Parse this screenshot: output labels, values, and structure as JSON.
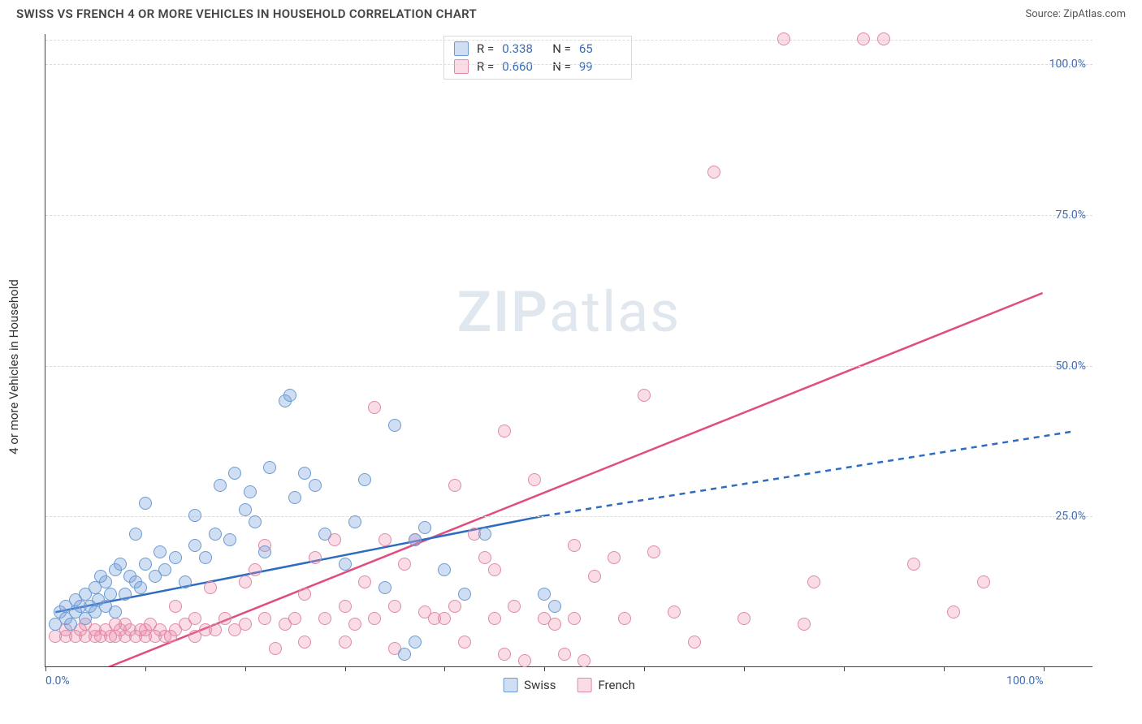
{
  "header": {
    "title": "SWISS VS FRENCH 4 OR MORE VEHICLES IN HOUSEHOLD CORRELATION CHART",
    "source_prefix": "Source: ",
    "source_link": "ZipAtlas.com"
  },
  "ylabel": "4 or more Vehicles in Household",
  "watermark": {
    "bold": "ZIP",
    "rest": "atlas"
  },
  "axes": {
    "xlim": [
      0,
      105
    ],
    "ylim": [
      0,
      105
    ],
    "yticks": [
      {
        "v": 25,
        "label": "25.0%"
      },
      {
        "v": 50,
        "label": "50.0%"
      },
      {
        "v": 75,
        "label": "75.0%"
      },
      {
        "v": 100,
        "label": "100.0%"
      }
    ],
    "grid_extra_y": 104,
    "xtick_positions": [
      0,
      10,
      20,
      30,
      40,
      50,
      60,
      70,
      80,
      90,
      100
    ],
    "xtick_labels": [
      {
        "v": 0,
        "label": "0.0%",
        "align": "left"
      },
      {
        "v": 100,
        "label": "100.0%",
        "align": "right"
      }
    ],
    "grid_color": "#dcdcdc"
  },
  "series": {
    "swiss": {
      "label": "Swiss",
      "fill": "rgba(120,160,220,0.35)",
      "stroke": "#6b9bd1",
      "line_color": "#2e6cc0",
      "r_label": "R =",
      "r_value": "0.338",
      "n_label": "N =",
      "n_value": "65",
      "marker_radius": 8,
      "trend": {
        "x1": 1,
        "y1": 9,
        "x2": 50,
        "y2": 25,
        "x_dash_to": 103,
        "y_dash_to": 39
      },
      "points": [
        [
          1,
          7
        ],
        [
          1.5,
          9
        ],
        [
          2,
          8
        ],
        [
          2,
          10
        ],
        [
          2.5,
          7
        ],
        [
          3,
          9
        ],
        [
          3,
          11
        ],
        [
          3.5,
          10
        ],
        [
          4,
          8
        ],
        [
          4,
          12
        ],
        [
          4.5,
          10
        ],
        [
          5,
          9
        ],
        [
          5,
          13
        ],
        [
          5.3,
          11
        ],
        [
          5.5,
          15
        ],
        [
          6,
          10
        ],
        [
          6,
          14
        ],
        [
          6.5,
          12
        ],
        [
          7,
          9
        ],
        [
          7,
          16
        ],
        [
          7.5,
          17
        ],
        [
          8,
          12
        ],
        [
          8.5,
          15
        ],
        [
          9,
          14
        ],
        [
          9,
          22
        ],
        [
          9.5,
          13
        ],
        [
          10,
          17
        ],
        [
          10,
          27
        ],
        [
          11,
          15
        ],
        [
          11.5,
          19
        ],
        [
          12,
          16
        ],
        [
          13,
          18
        ],
        [
          14,
          14
        ],
        [
          15,
          20
        ],
        [
          15,
          25
        ],
        [
          16,
          18
        ],
        [
          17,
          22
        ],
        [
          17.5,
          30
        ],
        [
          18.5,
          21
        ],
        [
          19,
          32
        ],
        [
          20,
          26
        ],
        [
          20.5,
          29
        ],
        [
          21,
          24
        ],
        [
          22,
          19
        ],
        [
          22.5,
          33
        ],
        [
          24,
          44
        ],
        [
          24.5,
          45
        ],
        [
          25,
          28
        ],
        [
          26,
          32
        ],
        [
          27,
          30
        ],
        [
          28,
          22
        ],
        [
          30,
          17
        ],
        [
          31,
          24
        ],
        [
          32,
          31
        ],
        [
          34,
          13
        ],
        [
          35,
          40
        ],
        [
          36,
          2
        ],
        [
          37,
          21
        ],
        [
          37,
          4
        ],
        [
          38,
          23
        ],
        [
          40,
          16
        ],
        [
          42,
          12
        ],
        [
          44,
          22
        ],
        [
          50,
          12
        ],
        [
          51,
          10
        ]
      ]
    },
    "french": {
      "label": "French",
      "fill": "rgba(235,140,170,0.30)",
      "stroke": "#e08aa8",
      "line_color": "#e04d7f",
      "r_label": "R =",
      "r_value": "0.660",
      "n_label": "N =",
      "n_value": "99",
      "marker_radius": 8,
      "trend": {
        "x1": 5,
        "y1": -1,
        "x2": 100,
        "y2": 62
      },
      "points": [
        [
          1,
          5
        ],
        [
          2,
          5
        ],
        [
          2,
          6
        ],
        [
          3,
          5
        ],
        [
          3.5,
          6
        ],
        [
          4,
          5
        ],
        [
          4,
          7
        ],
        [
          5,
          5
        ],
        [
          5,
          6
        ],
        [
          5.5,
          5
        ],
        [
          6,
          6
        ],
        [
          6.5,
          5
        ],
        [
          7,
          5
        ],
        [
          7,
          7
        ],
        [
          7.5,
          6
        ],
        [
          8,
          5
        ],
        [
          8,
          7
        ],
        [
          8.5,
          6
        ],
        [
          9,
          5
        ],
        [
          9.5,
          6
        ],
        [
          10,
          5
        ],
        [
          10,
          6
        ],
        [
          10.5,
          7
        ],
        [
          11,
          5
        ],
        [
          11.5,
          6
        ],
        [
          12,
          5
        ],
        [
          12.5,
          5
        ],
        [
          13,
          6
        ],
        [
          13,
          10
        ],
        [
          14,
          7
        ],
        [
          15,
          5
        ],
        [
          15,
          8
        ],
        [
          16,
          6
        ],
        [
          16.5,
          13
        ],
        [
          17,
          6
        ],
        [
          18,
          8
        ],
        [
          19,
          6
        ],
        [
          20,
          7
        ],
        [
          20,
          14
        ],
        [
          21,
          16
        ],
        [
          22,
          8
        ],
        [
          22,
          20
        ],
        [
          23,
          3
        ],
        [
          24,
          7
        ],
        [
          25,
          8
        ],
        [
          26,
          12
        ],
        [
          26,
          4
        ],
        [
          27,
          18
        ],
        [
          28,
          8
        ],
        [
          29,
          21
        ],
        [
          30,
          10
        ],
        [
          30,
          4
        ],
        [
          31,
          7
        ],
        [
          32,
          14
        ],
        [
          33,
          43
        ],
        [
          33,
          8
        ],
        [
          34,
          21
        ],
        [
          35,
          3
        ],
        [
          35,
          10
        ],
        [
          36,
          17
        ],
        [
          37,
          21
        ],
        [
          38,
          9
        ],
        [
          39,
          8
        ],
        [
          40,
          8
        ],
        [
          41,
          10
        ],
        [
          41,
          30
        ],
        [
          42,
          4
        ],
        [
          43,
          22
        ],
        [
          44,
          18
        ],
        [
          45,
          8
        ],
        [
          45,
          16
        ],
        [
          46,
          39
        ],
        [
          46,
          2
        ],
        [
          47,
          10
        ],
        [
          48,
          1
        ],
        [
          49,
          31
        ],
        [
          50,
          8
        ],
        [
          51,
          7
        ],
        [
          52,
          2
        ],
        [
          53,
          20
        ],
        [
          53,
          8
        ],
        [
          54,
          1
        ],
        [
          55,
          15
        ],
        [
          57,
          18
        ],
        [
          58,
          8
        ],
        [
          60,
          45
        ],
        [
          61,
          19
        ],
        [
          63,
          9
        ],
        [
          65,
          4
        ],
        [
          67,
          82
        ],
        [
          70,
          8
        ],
        [
          74,
          104
        ],
        [
          76,
          7
        ],
        [
          77,
          14
        ],
        [
          82,
          104
        ],
        [
          84,
          104
        ],
        [
          87,
          17
        ],
        [
          91,
          9
        ],
        [
          94,
          14
        ]
      ]
    }
  }
}
